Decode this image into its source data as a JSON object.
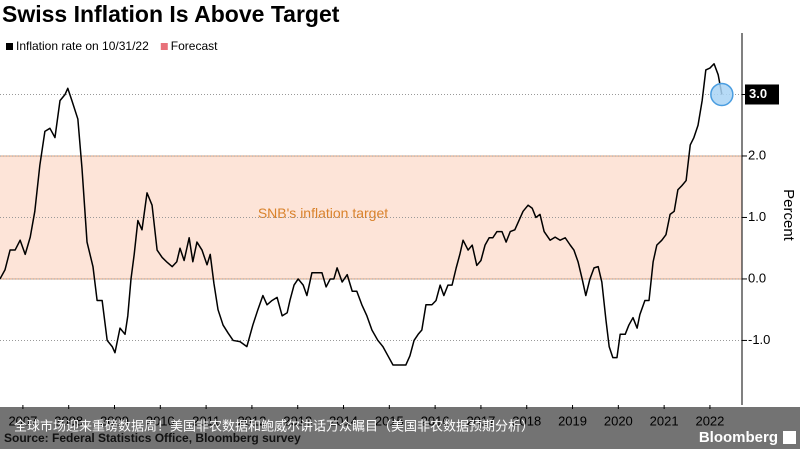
{
  "chart_data": {
    "type": "line",
    "title": "Swiss Inflation Is Above Target",
    "y_axis_label": "Percent",
    "annotation": "SNB's inflation target",
    "target_band": [
      0,
      2
    ],
    "target_color": "#fde4d8",
    "source": "Source: Federal Statistics Office, Bloomberg survey",
    "brand": "Bloomberg",
    "overlay_text": "全球市场迎来重磅数据周！美国非农数据和鲍威尔讲话万众瞩目（美国非农数据预期分析）",
    "xlim": [
      2007,
      2023.2
    ],
    "ylim": [
      -2.05,
      4.0
    ],
    "grid": true,
    "xticks": [
      {
        "value": 2007.5,
        "label": "2007"
      },
      {
        "value": 2008.5,
        "label": "2008"
      },
      {
        "value": 2009.5,
        "label": "2009"
      },
      {
        "value": 2010.5,
        "label": "2010"
      },
      {
        "value": 2011.5,
        "label": "2011"
      },
      {
        "value": 2012.5,
        "label": "2012"
      },
      {
        "value": 2013.5,
        "label": "2013"
      },
      {
        "value": 2014.5,
        "label": "2014"
      },
      {
        "value": 2015.5,
        "label": "2015"
      },
      {
        "value": 2016.5,
        "label": "2016"
      },
      {
        "value": 2017.5,
        "label": "2017"
      },
      {
        "value": 2018.5,
        "label": "2018"
      },
      {
        "value": 2019.5,
        "label": "2019"
      },
      {
        "value": 2020.5,
        "label": "2020"
      },
      {
        "value": 2021.5,
        "label": "2021"
      },
      {
        "value": 2022.5,
        "label": "2022"
      }
    ],
    "yticks": [
      {
        "value": -1,
        "label": "-1.0"
      },
      {
        "value": 0,
        "label": "0.0"
      },
      {
        "value": 1,
        "label": "1.0"
      },
      {
        "value": 2,
        "label": "2.0"
      },
      {
        "value": 3,
        "label": "3.0"
      }
    ],
    "series": [
      {
        "name": "Inflation rate on 10/31/22",
        "color": "#000000",
        "x": [
          2007.0,
          2007.11,
          2007.22,
          2007.33,
          2007.44,
          2007.55,
          2007.66,
          2007.76,
          2007.87,
          2007.98,
          2008.09,
          2008.2,
          2008.31,
          2008.42,
          2008.48,
          2008.57,
          2008.7,
          2008.79,
          2008.9,
          2009.03,
          2009.12,
          2009.23,
          2009.34,
          2009.45,
          2009.51,
          2009.62,
          2009.73,
          2009.79,
          2009.86,
          2009.93,
          2010.01,
          2010.1,
          2010.21,
          2010.32,
          2010.43,
          2010.54,
          2010.65,
          2010.76,
          2010.86,
          2010.93,
          2011.02,
          2011.13,
          2011.21,
          2011.3,
          2011.41,
          2011.52,
          2011.59,
          2011.67,
          2011.76,
          2011.87,
          2011.98,
          2012.09,
          2012.24,
          2012.39,
          2012.52,
          2012.63,
          2012.74,
          2012.83,
          2012.94,
          2013.05,
          2013.16,
          2013.27,
          2013.33,
          2013.42,
          2013.51,
          2013.62,
          2013.7,
          2013.81,
          2013.94,
          2014.03,
          2014.12,
          2014.21,
          2014.29,
          2014.36,
          2014.47,
          2014.58,
          2014.69,
          2014.79,
          2014.9,
          2015.01,
          2015.12,
          2015.25,
          2015.36,
          2015.47,
          2015.58,
          2015.73,
          2015.86,
          2015.95,
          2016.04,
          2016.13,
          2016.21,
          2016.3,
          2016.43,
          2016.52,
          2016.61,
          2016.69,
          2016.78,
          2016.87,
          2016.96,
          2017.04,
          2017.11,
          2017.22,
          2017.31,
          2017.41,
          2017.5,
          2017.59,
          2017.68,
          2017.76,
          2017.85,
          2017.96,
          2018.05,
          2018.14,
          2018.24,
          2018.33,
          2018.42,
          2018.53,
          2018.62,
          2018.7,
          2018.79,
          2018.88,
          2019.01,
          2019.12,
          2019.23,
          2019.34,
          2019.45,
          2019.53,
          2019.62,
          2019.71,
          2019.79,
          2019.88,
          2019.97,
          2020.06,
          2020.14,
          2020.23,
          2020.3,
          2020.38,
          2020.47,
          2020.54,
          2020.65,
          2020.73,
          2020.82,
          2020.91,
          2020.97,
          2021.08,
          2021.17,
          2021.26,
          2021.34,
          2021.45,
          2021.54,
          2021.63,
          2021.72,
          2021.8,
          2021.89,
          2021.98,
          2022.07,
          2022.15,
          2022.24,
          2022.33,
          2022.41,
          2022.5,
          2022.59,
          2022.68,
          2022.76
        ],
        "values": [
          0.0,
          0.15,
          0.47,
          0.47,
          0.63,
          0.4,
          0.68,
          1.1,
          1.85,
          2.4,
          2.45,
          2.3,
          2.9,
          3.0,
          3.1,
          2.9,
          2.6,
          1.8,
          0.6,
          0.2,
          -0.35,
          -0.35,
          -1.0,
          -1.1,
          -1.2,
          -0.8,
          -0.9,
          -0.6,
          0.0,
          0.4,
          0.95,
          0.8,
          1.4,
          1.2,
          0.47,
          0.35,
          0.27,
          0.2,
          0.28,
          0.5,
          0.3,
          0.67,
          0.28,
          0.6,
          0.47,
          0.23,
          0.4,
          -0.07,
          -0.5,
          -0.75,
          -0.88,
          -1.0,
          -1.02,
          -1.1,
          -0.75,
          -0.5,
          -0.27,
          -0.42,
          -0.35,
          -0.3,
          -0.6,
          -0.55,
          -0.35,
          -0.1,
          0.0,
          -0.1,
          -0.27,
          0.1,
          0.1,
          0.1,
          -0.13,
          0.0,
          0.0,
          0.18,
          -0.05,
          0.07,
          -0.2,
          -0.2,
          -0.42,
          -0.6,
          -0.83,
          -1.0,
          -1.1,
          -1.25,
          -1.4,
          -1.4,
          -1.4,
          -1.25,
          -1.0,
          -0.9,
          -0.83,
          -0.42,
          -0.42,
          -0.35,
          -0.1,
          -0.27,
          -0.1,
          -0.1,
          0.18,
          0.4,
          0.63,
          0.47,
          0.55,
          0.22,
          0.3,
          0.55,
          0.67,
          0.67,
          0.77,
          0.77,
          0.6,
          0.77,
          0.8,
          0.95,
          1.1,
          1.2,
          1.15,
          1.0,
          1.05,
          0.77,
          0.63,
          0.68,
          0.63,
          0.67,
          0.55,
          0.47,
          0.28,
          0.0,
          -0.27,
          0.0,
          0.18,
          0.2,
          -0.05,
          -0.67,
          -1.1,
          -1.28,
          -1.28,
          -0.9,
          -0.9,
          -0.75,
          -0.63,
          -0.8,
          -0.58,
          -0.35,
          -0.35,
          0.28,
          0.55,
          0.63,
          0.72,
          1.05,
          1.1,
          1.45,
          1.52,
          1.6,
          2.18,
          2.3,
          2.5,
          2.9,
          3.4,
          3.43,
          3.5,
          3.32,
          3.0
        ],
        "value_labels": {
          "last": "3.0"
        }
      },
      {
        "name": "Forecast",
        "color": "#e8717a",
        "x": [],
        "values": []
      }
    ]
  }
}
